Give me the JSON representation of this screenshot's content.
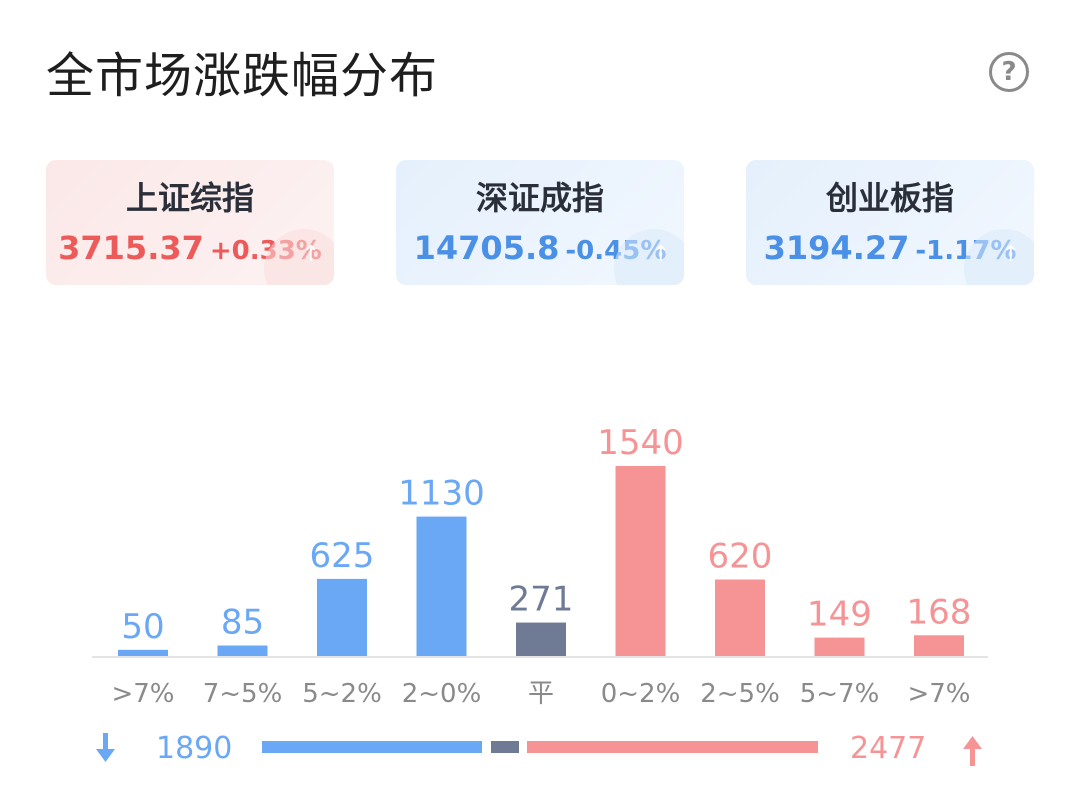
{
  "header": {
    "title": "全市场涨跌幅分布",
    "help_icon": "?"
  },
  "indices": [
    {
      "name": "上证综指",
      "value": "3715.37",
      "change": "+0.33%",
      "trend": "up"
    },
    {
      "name": "深证成指",
      "value": "14705.8",
      "change": "-0.45%",
      "trend": "down"
    },
    {
      "name": "创业板指",
      "value": "3194.27",
      "change": "-1.17%",
      "trend": "down"
    }
  ],
  "colors": {
    "down": "#6aa8f6",
    "up": "#f69495",
    "flat": "#6f7b94",
    "axis": "#e4e4e4",
    "tick": "#8a8a8a"
  },
  "chart_data": {
    "type": "bar",
    "categories": [
      ">7%",
      "7~5%",
      "5~2%",
      "2~0%",
      "平",
      "0~2%",
      "2~5%",
      "5~7%",
      ">7%"
    ],
    "values": [
      50,
      85,
      625,
      1130,
      271,
      1540,
      620,
      149,
      168
    ],
    "groups": [
      "down",
      "down",
      "down",
      "down",
      "flat",
      "up",
      "up",
      "up",
      "up"
    ],
    "title": "",
    "xlabel": "",
    "ylabel": "",
    "ylim": [
      0,
      1540
    ],
    "grid": false,
    "legend": "none"
  },
  "summary": {
    "down_count": "1890",
    "up_count": "2477",
    "down_arrow_icon": "arrow-down-icon",
    "up_arrow_icon": "arrow-up-icon"
  }
}
